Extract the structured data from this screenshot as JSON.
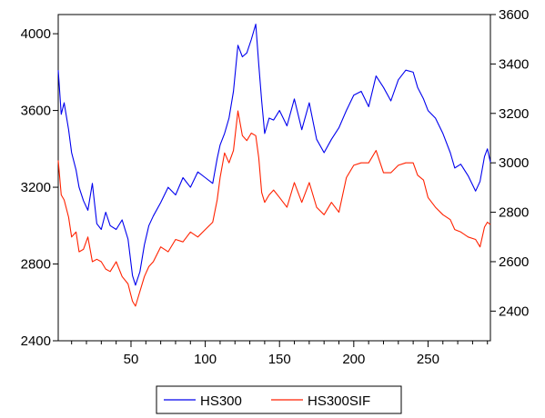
{
  "chart_data": {
    "type": "line",
    "title": "",
    "xlabel": "",
    "grid": false,
    "legend_position": "bottom",
    "x_range": [
      1,
      292
    ],
    "x_ticks": [
      50,
      100,
      150,
      200,
      250
    ],
    "axes": {
      "left": {
        "series": "HS300",
        "ylim": [
          2400,
          4100
        ],
        "ticks": [
          2400,
          2800,
          3200,
          3600,
          4000
        ]
      },
      "right": {
        "series": "HS300SIF",
        "ylim": [
          2280,
          3600
        ],
        "ticks": [
          2400,
          2600,
          2800,
          3000,
          3200,
          3400,
          3600
        ]
      }
    },
    "series": [
      {
        "name": "HS300",
        "axis": "left",
        "color": "#0000ee",
        "x": [
          1,
          3,
          5,
          8,
          10,
          13,
          15,
          18,
          21,
          24,
          27,
          30,
          33,
          36,
          40,
          44,
          48,
          51,
          53,
          56,
          59,
          62,
          65,
          70,
          75,
          80,
          85,
          90,
          95,
          100,
          105,
          108,
          110,
          113,
          116,
          119,
          122,
          125,
          128,
          131,
          134,
          136,
          138,
          140,
          143,
          146,
          150,
          155,
          160,
          165,
          170,
          175,
          180,
          185,
          190,
          195,
          200,
          205,
          210,
          215,
          220,
          225,
          230,
          235,
          240,
          243,
          247,
          250,
          255,
          260,
          265,
          268,
          272,
          277,
          282,
          285,
          288,
          290,
          292
        ],
        "y": [
          3810,
          3580,
          3640,
          3500,
          3380,
          3290,
          3200,
          3130,
          3080,
          3220,
          3010,
          2980,
          3070,
          3000,
          2980,
          3030,
          2930,
          2740,
          2690,
          2760,
          2900,
          3000,
          3050,
          3120,
          3200,
          3160,
          3250,
          3200,
          3280,
          3250,
          3220,
          3350,
          3420,
          3480,
          3560,
          3700,
          3940,
          3880,
          3900,
          3970,
          4050,
          3840,
          3650,
          3480,
          3560,
          3550,
          3600,
          3520,
          3660,
          3500,
          3640,
          3450,
          3380,
          3450,
          3510,
          3600,
          3680,
          3700,
          3620,
          3780,
          3720,
          3650,
          3760,
          3810,
          3800,
          3720,
          3660,
          3600,
          3560,
          3480,
          3380,
          3300,
          3320,
          3260,
          3180,
          3230,
          3360,
          3400,
          3330
        ]
      },
      {
        "name": "HS300SIF",
        "axis": "right",
        "color": "#ff2200",
        "x": [
          1,
          3,
          5,
          8,
          10,
          13,
          15,
          18,
          21,
          24,
          27,
          30,
          33,
          36,
          40,
          44,
          48,
          51,
          53,
          56,
          59,
          62,
          65,
          70,
          75,
          80,
          85,
          90,
          95,
          100,
          105,
          108,
          110,
          113,
          116,
          119,
          122,
          125,
          128,
          131,
          134,
          136,
          138,
          140,
          143,
          146,
          150,
          155,
          160,
          165,
          170,
          175,
          180,
          185,
          190,
          195,
          200,
          205,
          210,
          215,
          220,
          225,
          230,
          235,
          240,
          243,
          247,
          250,
          255,
          260,
          265,
          268,
          272,
          277,
          282,
          285,
          288,
          290,
          292
        ],
        "y": [
          3010,
          2870,
          2850,
          2780,
          2700,
          2720,
          2640,
          2650,
          2700,
          2600,
          2610,
          2600,
          2570,
          2560,
          2600,
          2540,
          2510,
          2440,
          2420,
          2480,
          2540,
          2580,
          2600,
          2660,
          2640,
          2690,
          2680,
          2720,
          2700,
          2730,
          2760,
          2850,
          2940,
          3040,
          3000,
          3050,
          3210,
          3110,
          3090,
          3120,
          3110,
          3020,
          2880,
          2840,
          2870,
          2890,
          2860,
          2820,
          2920,
          2840,
          2920,
          2820,
          2790,
          2840,
          2800,
          2940,
          2990,
          3000,
          3000,
          3050,
          2960,
          2960,
          2990,
          3000,
          3000,
          2950,
          2930,
          2860,
          2820,
          2790,
          2770,
          2730,
          2720,
          2700,
          2690,
          2660,
          2740,
          2760,
          2750
        ]
      }
    ]
  }
}
